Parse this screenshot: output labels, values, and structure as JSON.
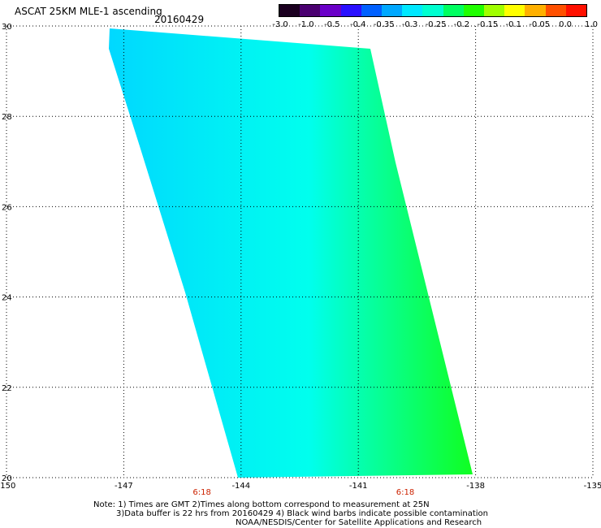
{
  "title": "ASCAT 25KM MLE-1 ascending",
  "date": "20160429",
  "colorbar": {
    "labels": [
      "-3.0",
      "-1.0",
      "-0.5",
      "-0.4",
      "-0.35",
      "-0.3",
      "-0.25",
      "-0.2",
      "-0.15",
      "-0.1",
      "-0.05",
      "0.0",
      "1.0"
    ],
    "colors": [
      "#1b0020",
      "#4a0070",
      "#6a00c8",
      "#2a10ff",
      "#0060ff",
      "#00a8ff",
      "#00e8ff",
      "#00ffd0",
      "#00ff60",
      "#20ff00",
      "#a0ff00",
      "#ffff00",
      "#ffb000",
      "#ff5000",
      "#ff1000"
    ]
  },
  "map": {
    "lon_ticks": [
      "-150",
      "-147",
      "-144",
      "-141",
      "-138",
      "-135"
    ],
    "lat_ticks": [
      "20",
      "22",
      "24",
      "26",
      "28",
      "30"
    ],
    "lon_range": [
      -150,
      -135
    ],
    "lat_range": [
      20,
      30
    ],
    "grid": true,
    "swath_colors": {
      "west": "#00d8ff",
      "center": "#00ffee",
      "east": "#10ff20"
    },
    "time_labels": [
      {
        "text": "6:18",
        "lon": -145.0
      },
      {
        "text": "6:18",
        "lon": -139.8
      }
    ],
    "time_color": "#cc2200"
  },
  "footer": {
    "line1": "Note: 1) Times are GMT 2)Times along bottom correspond to measurement at 25N",
    "line2": "3)Data buffer is 22 hrs from 20160429 4) Black wind barbs indicate possible contamination",
    "line3": "NOAA/NESDIS/Center for Satellite Applications and Research"
  }
}
